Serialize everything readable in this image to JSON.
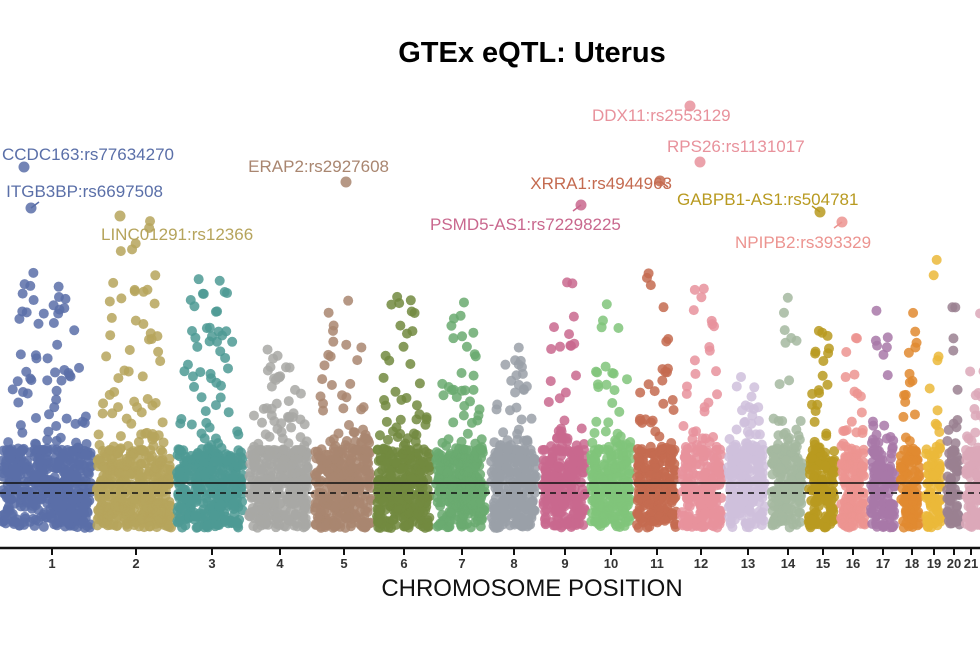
{
  "chart_data": {
    "type": "scatter",
    "subtype": "manhattan",
    "title": "GTEx eQTL: Uterus",
    "xlabel": "CHROMOSOME POSITION",
    "ylabel": "",
    "grid": false,
    "legend": "none",
    "chromosomes": [
      "1",
      "2",
      "3",
      "4",
      "5",
      "6",
      "7",
      "8",
      "9",
      "10",
      "11",
      "12",
      "13",
      "14",
      "15",
      "16",
      "17",
      "18",
      "19",
      "20",
      "21"
    ],
    "chromosome_colors": [
      "#5a6fa8",
      "#b6a45c",
      "#4e9a94",
      "#a8a8a4",
      "#a98670",
      "#728a3f",
      "#6aaa70",
      "#9aa0a8",
      "#c9688e",
      "#80c47a",
      "#c46b50",
      "#e8929c",
      "#cfc0dc",
      "#a4b8a0",
      "#b89a20",
      "#ec9490",
      "#a878a8",
      "#e08a30",
      "#ebb83a",
      "#9a8090",
      "#dca8b8"
    ],
    "threshold_lines": [
      {
        "style": "solid"
      },
      {
        "style": "dashed"
      }
    ],
    "annotations": [
      {
        "label": "CCDC163:rs77634270",
        "chromosome": "1"
      },
      {
        "label": "ITGB3BP:rs6697508",
        "chromosome": "1"
      },
      {
        "label": "LINC01291:rs12366",
        "chromosome": "2"
      },
      {
        "label": "ERAP2:rs2927608",
        "chromosome": "5"
      },
      {
        "label": "PSMD5-AS1:rs72298225",
        "chromosome": "9"
      },
      {
        "label": "XRRA1:rs4944963",
        "chromosome": "11"
      },
      {
        "label": "DDX11:rs2553129",
        "chromosome": "12"
      },
      {
        "label": "RPS26:rs1131017",
        "chromosome": "12"
      },
      {
        "label": "GABPB1-AS1:rs504781",
        "chromosome": "15"
      },
      {
        "label": "NPIPB2:rs393329",
        "chromosome": "16"
      }
    ]
  }
}
